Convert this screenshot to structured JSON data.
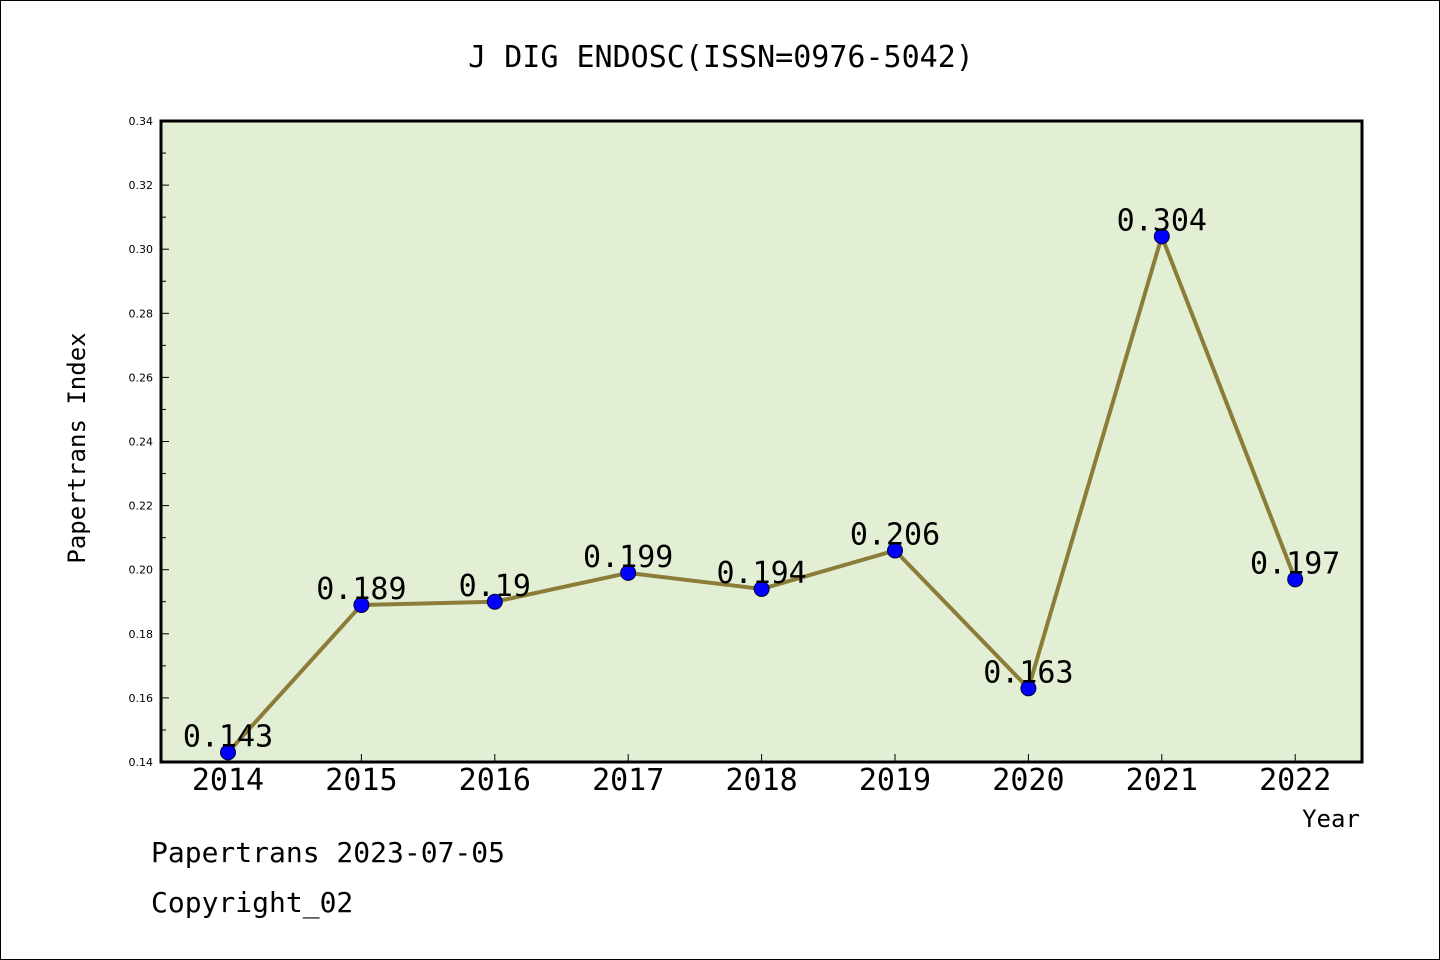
{
  "chart_data": {
    "type": "line",
    "title": "J DIG ENDOSC(ISSN=0976-5042)",
    "xlabel": "Year",
    "ylabel": "Papertrans Index",
    "categories": [
      "2014",
      "2015",
      "2016",
      "2017",
      "2018",
      "2019",
      "2020",
      "2021",
      "2022"
    ],
    "series": [
      {
        "values": [
          0.143,
          0.189,
          0.19,
          0.199,
          0.194,
          0.206,
          0.163,
          0.304,
          0.197
        ],
        "data_labels": [
          "0.143",
          "0.189",
          "0.19",
          "0.199",
          "0.194",
          "0.206",
          "0.163",
          "0.304",
          "0.197"
        ]
      }
    ],
    "ylim": [
      0.14,
      0.34
    ],
    "yticks": [
      "0.14",
      "0.16",
      "0.18",
      "0.20",
      "0.22",
      "0.24",
      "0.26",
      "0.28",
      "0.30",
      "0.32",
      "0.34"
    ],
    "grid": false,
    "legend": "none",
    "colors": {
      "plot_background": "#e2efd5",
      "line": "#8b7d37",
      "marker": "#0000ff"
    }
  },
  "footer": {
    "line1": "Papertrans 2023-07-05",
    "line2": "Copyright_02"
  }
}
